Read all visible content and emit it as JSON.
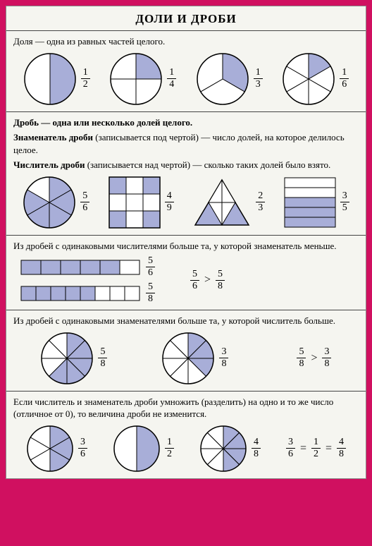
{
  "title": "ДОЛИ И ДРОБИ",
  "fill": "#a8aed8",
  "stroke": "#000",
  "s1": {
    "text": "Доля — одна из равных частей целого.",
    "items": [
      {
        "n": "1",
        "d": "2",
        "slices": 2,
        "shaded": [
          0
        ]
      },
      {
        "n": "1",
        "d": "4",
        "slices": 4,
        "shaded": [
          0
        ]
      },
      {
        "n": "1",
        "d": "3",
        "slices": 3,
        "shaded": [
          0
        ]
      },
      {
        "n": "1",
        "d": "6",
        "slices": 6,
        "shaded": [
          0
        ]
      }
    ]
  },
  "s2": {
    "l1": "Дробь — одна или несколько долей целого.",
    "l2a": "Знаменатель дроби",
    "l2b": " (записывается под чертой) — число долей, на которое делилось целое.",
    "l3a": "Числитель дроби",
    "l3b": " (записывается над чертой) — сколько таких долей было взято.",
    "pie": {
      "n": "5",
      "d": "6",
      "slices": 6,
      "shaded": [
        0,
        1,
        2,
        3,
        4
      ]
    },
    "grid": {
      "n": "4",
      "d": "9"
    },
    "tri": {
      "n": "2",
      "d": "3"
    },
    "rect": {
      "n": "3",
      "d": "5"
    }
  },
  "s3": {
    "text": "Из дробей с одинаковыми числителями больше та, у которой знаменатель меньше.",
    "bar1": {
      "n": "5",
      "d": "6",
      "total": 6,
      "filled": 5
    },
    "bar2": {
      "n": "5",
      "d": "8",
      "total": 8,
      "filled": 5
    },
    "cmp": {
      "a": {
        "n": "5",
        "d": "6"
      },
      "op": ">",
      "b": {
        "n": "5",
        "d": "8"
      }
    }
  },
  "s4": {
    "text": "Из дробей с одинаковыми знаменателями больше та, у которой числитель больше.",
    "p1": {
      "n": "5",
      "d": "8",
      "slices": 8,
      "shaded": [
        0,
        1,
        2,
        3,
        4
      ]
    },
    "p2": {
      "n": "3",
      "d": "8",
      "slices": 8,
      "shaded": [
        0,
        1,
        2
      ]
    },
    "cmp": {
      "a": {
        "n": "5",
        "d": "8"
      },
      "op": ">",
      "b": {
        "n": "3",
        "d": "8"
      }
    }
  },
  "s5": {
    "text": "Если числитель и знаменатель дроби умножить (разделить) на одно и то же число (отличное от 0), то величина дроби не изменится.",
    "p1": {
      "n": "3",
      "d": "6",
      "slices": 6,
      "shaded": [
        0,
        1,
        2
      ]
    },
    "p2": {
      "n": "1",
      "d": "2",
      "slices": 2,
      "shaded": [
        0
      ]
    },
    "p3": {
      "n": "4",
      "d": "8",
      "slices": 8,
      "shaded": [
        0,
        1,
        2,
        3
      ]
    },
    "eq": {
      "a": {
        "n": "3",
        "d": "6"
      },
      "b": {
        "n": "1",
        "d": "2"
      },
      "c": {
        "n": "4",
        "d": "8"
      }
    }
  }
}
